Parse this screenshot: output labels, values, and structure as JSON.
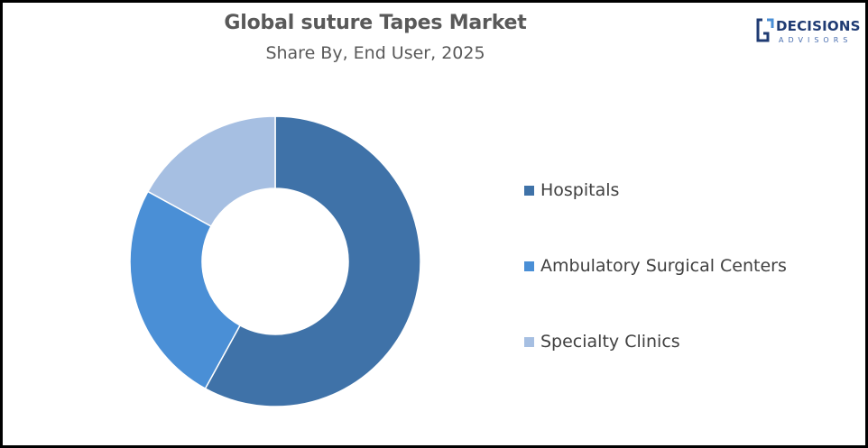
{
  "chart_data": {
    "type": "pie",
    "title": "Global suture Tapes Market",
    "subtitle": "Share By, End User, 2025",
    "categories": [
      "Hospitals",
      "Ambulatory Surgical Centers",
      "Specialty Clinics"
    ],
    "values": [
      58,
      25,
      17
    ],
    "colors": [
      "#3f72a8",
      "#4a8fd6",
      "#a6bfe2"
    ],
    "donut": true,
    "legend_position": "right"
  },
  "logo": {
    "word": "DECISIONS",
    "sub": "ADVISORS"
  }
}
